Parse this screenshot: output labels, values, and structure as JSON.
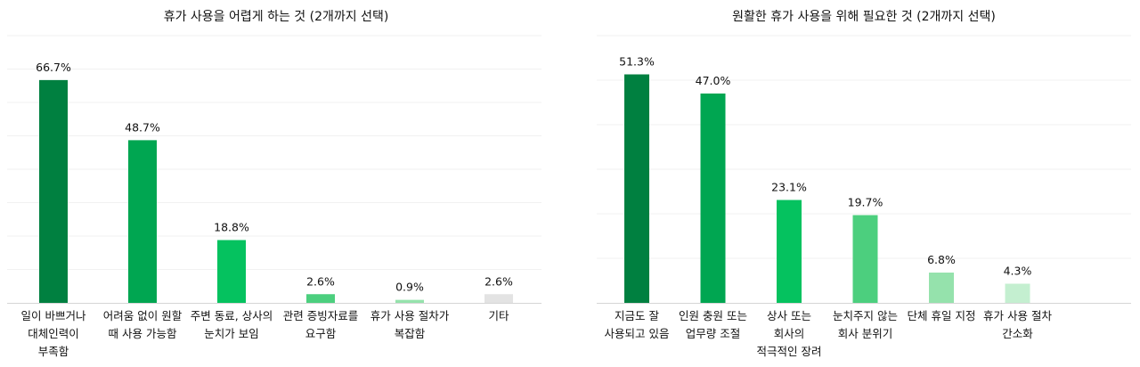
{
  "charts": [
    {
      "id": "left",
      "chart_data": {
        "type": "bar",
        "title": "휴가 사용을 어렵게 하는 것 (2개까지 선택)",
        "categories": [
          "일이 바쁘거나\n대체인력이\n부족함",
          "어려움 없이 원할\n때 사용 가능함",
          "주변 동료, 상사의\n눈치가 보임",
          "관련 증빙자료를\n요구함",
          "휴가 사용 절차가\n복잡함",
          "기타"
        ],
        "values": [
          66.7,
          48.7,
          18.8,
          2.6,
          0.9,
          2.6
        ],
        "labels": [
          "66.7%",
          "48.7%",
          "18.8%",
          "2.6%",
          "0.9%",
          "2.6%"
        ],
        "colors": [
          "#008040",
          "#00a651",
          "#05c25f",
          "#4ccf7e",
          "#95e2ac",
          "#e3e3e3"
        ],
        "ylim": [
          0,
          80
        ],
        "grid": true
      }
    },
    {
      "id": "right",
      "chart_data": {
        "type": "bar",
        "title": "원활한 휴가 사용을 위해 필요한 것 (2개까지 선택)",
        "categories": [
          "지금도 잘\n사용되고 있음",
          "인원 충원 또는\n업무량 조절",
          "상사 또는\n회사의\n적극적인 장려",
          "눈치주지 않는\n회사 분위기",
          "단체 휴일 지정",
          "휴가 사용 절차\n간소화"
        ],
        "values": [
          51.3,
          47.0,
          23.1,
          19.7,
          6.8,
          4.3
        ],
        "labels": [
          "51.3%",
          "47.0%",
          "23.1%",
          "19.7%",
          "6.8%",
          "4.3%"
        ],
        "colors": [
          "#008040",
          "#00a651",
          "#05c25f",
          "#4ccf7e",
          "#95e2ac",
          "#c4efd0"
        ],
        "ylim": [
          0,
          60
        ],
        "grid": true
      }
    }
  ]
}
